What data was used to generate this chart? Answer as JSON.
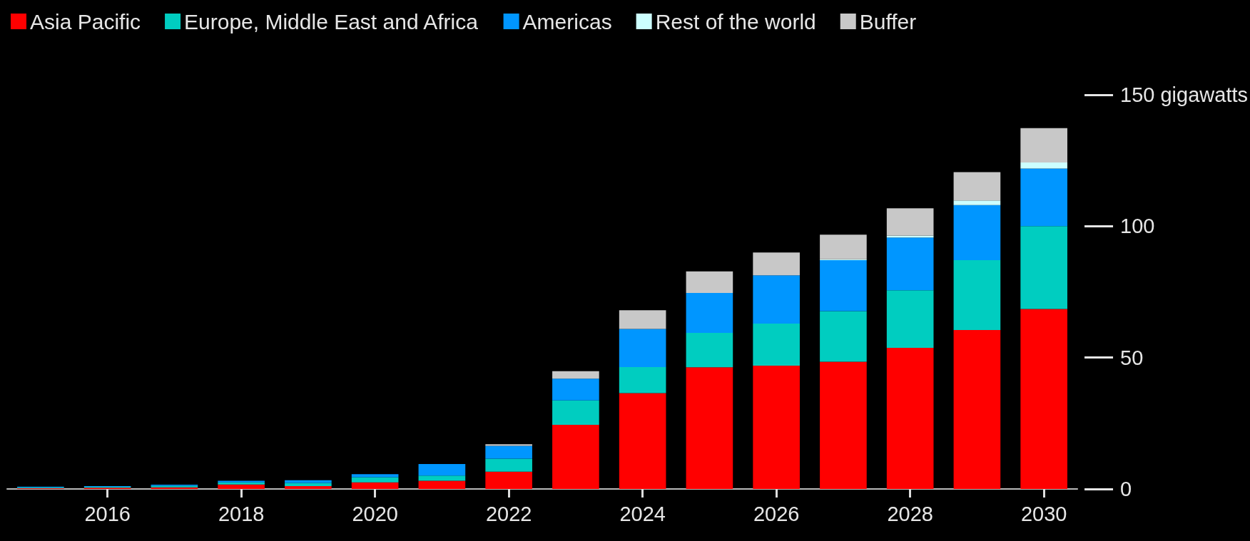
{
  "chart_data": {
    "type": "bar",
    "stacked": true,
    "categories": [
      null,
      "2016",
      null,
      "2018",
      null,
      "2020",
      null,
      "2022",
      null,
      "2024",
      null,
      "2026",
      null,
      "2028",
      null,
      "2030"
    ],
    "series": [
      {
        "name": "Asia Pacific",
        "color": "#ff0000",
        "values": [
          0.3,
          0.5,
          0.6,
          1.7,
          1.1,
          2.5,
          3.1,
          6.6,
          24.4,
          36.5,
          46.3,
          46.9,
          48.4,
          53.7,
          60.5,
          68.5
        ]
      },
      {
        "name": "Europe, Middle East and Africa",
        "color": "#00cdc0",
        "values": [
          0.3,
          0.3,
          0.6,
          0.8,
          1.2,
          2.0,
          2.0,
          4.9,
          9.3,
          9.9,
          13.1,
          16,
          19.3,
          21.9,
          26.6,
          31.5
        ]
      },
      {
        "name": "Americas",
        "color": "#0096ff",
        "values": [
          0.3,
          0.3,
          0.4,
          0.6,
          1.0,
          1.1,
          4.4,
          4.9,
          8.3,
          14.5,
          15.2,
          18.4,
          19.4,
          20.1,
          20.9,
          21.9
        ]
      },
      {
        "name": "Rest of the world",
        "color": "#ccffff",
        "values": [
          null,
          null,
          null,
          null,
          null,
          null,
          null,
          null,
          null,
          null,
          null,
          null,
          0.3,
          0.7,
          1.8,
          2.3
        ]
      },
      {
        "name": "Buffer",
        "color": "#c8c8c8",
        "values": [
          null,
          null,
          null,
          null,
          null,
          null,
          null,
          0.6,
          2.8,
          7.1,
          8.2,
          8.7,
          9.4,
          10.4,
          10.8,
          13.1
        ]
      }
    ],
    "ylim": [
      0,
      150
    ],
    "yticks": [
      0,
      50,
      100,
      {
        "value": 150,
        "label": "150 gigawatts"
      }
    ],
    "grid": false,
    "legend": "top left"
  }
}
